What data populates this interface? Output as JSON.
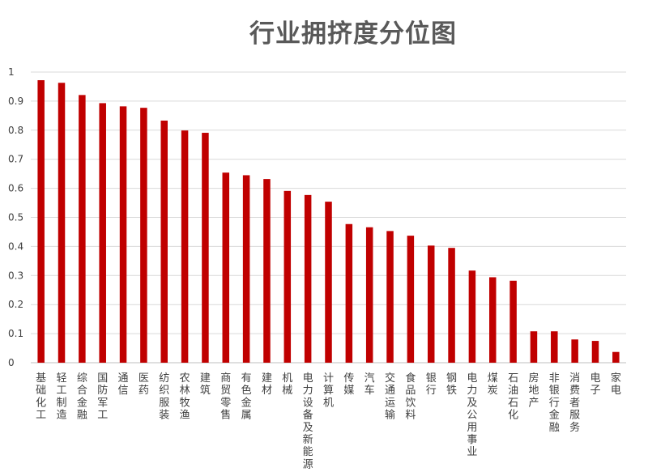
{
  "chart_data": {
    "type": "bar",
    "title": "行业拥挤度分位图",
    "xlabel": "",
    "ylabel": "",
    "ylim": [
      0,
      1
    ],
    "yticks": [
      0,
      0.1,
      0.2,
      0.3,
      0.4,
      0.5,
      0.6,
      0.7,
      0.8,
      0.9,
      1
    ],
    "grid": true,
    "legend": "none",
    "bar_color": "#C00000",
    "categories": [
      "基础化工",
      "轻工制造",
      "综合金融",
      "国防军工",
      "通信",
      "医药",
      "纺织服装",
      "农林牧渔",
      "建筑",
      "商贸零售",
      "有色金属",
      "建材",
      "机械",
      "电力设备及新能源",
      "计算机",
      "传媒",
      "汽车",
      "交通运输",
      "食品饮料",
      "银行",
      "钢铁",
      "电力及公用事业",
      "煤炭",
      "石油石化",
      "房地产",
      "非银行金融",
      "消费者服务",
      "电子",
      "家电"
    ],
    "values": [
      0.972,
      0.963,
      0.921,
      0.893,
      0.882,
      0.877,
      0.833,
      0.799,
      0.791,
      0.654,
      0.645,
      0.632,
      0.591,
      0.577,
      0.554,
      0.477,
      0.466,
      0.453,
      0.437,
      0.403,
      0.395,
      0.317,
      0.294,
      0.282,
      0.108,
      0.108,
      0.08,
      0.075,
      0.037
    ]
  }
}
